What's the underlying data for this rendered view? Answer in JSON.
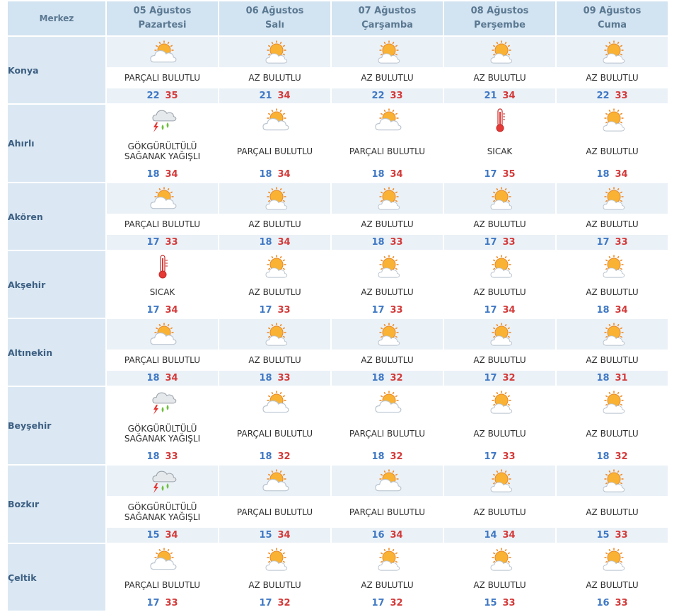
{
  "header": {
    "merkez_label": "Merkez",
    "days": [
      {
        "date": "05 Ağustos",
        "weekday": "Pazartesi"
      },
      {
        "date": "06 Ağustos",
        "weekday": "Salı"
      },
      {
        "date": "07 Ağustos",
        "weekday": "Çarşamba"
      },
      {
        "date": "08 Ağustos",
        "weekday": "Perşembe"
      },
      {
        "date": "09 Ağustos",
        "weekday": "Cuma"
      }
    ]
  },
  "colors": {
    "header_bg": "#d2e3f1",
    "city_bg": "#dbe8f3",
    "min_temp": "#3f78c4",
    "max_temp": "#d43a3a"
  },
  "rows": [
    {
      "city": "Konya",
      "days": [
        {
          "icon": "partly-cloudy-icon",
          "desc": [
            "PARÇALI BULUTLU"
          ],
          "min": "22",
          "max": "35"
        },
        {
          "icon": "mostly-sunny-icon",
          "desc": [
            "AZ BULUTLU"
          ],
          "min": "21",
          "max": "34"
        },
        {
          "icon": "mostly-sunny-icon",
          "desc": [
            "AZ BULUTLU"
          ],
          "min": "22",
          "max": "33"
        },
        {
          "icon": "mostly-sunny-icon",
          "desc": [
            "AZ BULUTLU"
          ],
          "min": "21",
          "max": "34"
        },
        {
          "icon": "mostly-sunny-icon",
          "desc": [
            "AZ BULUTLU"
          ],
          "min": "22",
          "max": "33"
        }
      ]
    },
    {
      "city": "Ahırlı",
      "days": [
        {
          "icon": "thunderstorm-icon",
          "desc": [
            "GÖKGÜRÜLTÜLÜ",
            "SAĞANAK YAĞIŞLI"
          ],
          "min": "18",
          "max": "34"
        },
        {
          "icon": "partly-cloudy-icon",
          "desc": [
            "PARÇALI BULUTLU"
          ],
          "min": "18",
          "max": "34"
        },
        {
          "icon": "partly-cloudy-icon",
          "desc": [
            "PARÇALI BULUTLU"
          ],
          "min": "18",
          "max": "34"
        },
        {
          "icon": "hot-thermometer-icon",
          "desc": [
            "SICAK"
          ],
          "min": "17",
          "max": "35"
        },
        {
          "icon": "mostly-sunny-icon",
          "desc": [
            "AZ BULUTLU"
          ],
          "min": "18",
          "max": "34"
        }
      ]
    },
    {
      "city": "Akören",
      "days": [
        {
          "icon": "partly-cloudy-icon",
          "desc": [
            "PARÇALI BULUTLU"
          ],
          "min": "17",
          "max": "33"
        },
        {
          "icon": "mostly-sunny-icon",
          "desc": [
            "AZ BULUTLU"
          ],
          "min": "18",
          "max": "34"
        },
        {
          "icon": "mostly-sunny-icon",
          "desc": [
            "AZ BULUTLU"
          ],
          "min": "18",
          "max": "33"
        },
        {
          "icon": "mostly-sunny-icon",
          "desc": [
            "AZ BULUTLU"
          ],
          "min": "17",
          "max": "33"
        },
        {
          "icon": "mostly-sunny-icon",
          "desc": [
            "AZ BULUTLU"
          ],
          "min": "17",
          "max": "33"
        }
      ]
    },
    {
      "city": "Akşehir",
      "days": [
        {
          "icon": "hot-thermometer-icon",
          "desc": [
            "SICAK"
          ],
          "min": "17",
          "max": "34"
        },
        {
          "icon": "mostly-sunny-icon",
          "desc": [
            "AZ BULUTLU"
          ],
          "min": "17",
          "max": "33"
        },
        {
          "icon": "mostly-sunny-icon",
          "desc": [
            "AZ BULUTLU"
          ],
          "min": "17",
          "max": "33"
        },
        {
          "icon": "mostly-sunny-icon",
          "desc": [
            "AZ BULUTLU"
          ],
          "min": "17",
          "max": "34"
        },
        {
          "icon": "mostly-sunny-icon",
          "desc": [
            "AZ BULUTLU"
          ],
          "min": "18",
          "max": "34"
        }
      ]
    },
    {
      "city": "Altınekin",
      "days": [
        {
          "icon": "partly-cloudy-icon",
          "desc": [
            "PARÇALI BULUTLU"
          ],
          "min": "18",
          "max": "34"
        },
        {
          "icon": "mostly-sunny-icon",
          "desc": [
            "AZ BULUTLU"
          ],
          "min": "18",
          "max": "33"
        },
        {
          "icon": "mostly-sunny-icon",
          "desc": [
            "AZ BULUTLU"
          ],
          "min": "18",
          "max": "32"
        },
        {
          "icon": "mostly-sunny-icon",
          "desc": [
            "AZ BULUTLU"
          ],
          "min": "17",
          "max": "32"
        },
        {
          "icon": "mostly-sunny-icon",
          "desc": [
            "AZ BULUTLU"
          ],
          "min": "18",
          "max": "31"
        }
      ]
    },
    {
      "city": "Beyşehir",
      "days": [
        {
          "icon": "thunderstorm-icon",
          "desc": [
            "GÖKGÜRÜLTÜLÜ",
            "SAĞANAK YAĞIŞLI"
          ],
          "min": "18",
          "max": "33"
        },
        {
          "icon": "partly-cloudy-icon",
          "desc": [
            "PARÇALI BULUTLU"
          ],
          "min": "18",
          "max": "32"
        },
        {
          "icon": "partly-cloudy-icon",
          "desc": [
            "PARÇALI BULUTLU"
          ],
          "min": "18",
          "max": "32"
        },
        {
          "icon": "mostly-sunny-icon",
          "desc": [
            "AZ BULUTLU"
          ],
          "min": "17",
          "max": "33"
        },
        {
          "icon": "mostly-sunny-icon",
          "desc": [
            "AZ BULUTLU"
          ],
          "min": "18",
          "max": "32"
        }
      ]
    },
    {
      "city": "Bozkır",
      "days": [
        {
          "icon": "thunderstorm-icon",
          "desc": [
            "GÖKGÜRÜLTÜLÜ",
            "SAĞANAK YAĞIŞLI"
          ],
          "min": "15",
          "max": "34"
        },
        {
          "icon": "partly-cloudy-icon",
          "desc": [
            "PARÇALI BULUTLU"
          ],
          "min": "15",
          "max": "34"
        },
        {
          "icon": "partly-cloudy-icon",
          "desc": [
            "PARÇALI BULUTLU"
          ],
          "min": "16",
          "max": "34"
        },
        {
          "icon": "mostly-sunny-icon",
          "desc": [
            "AZ BULUTLU"
          ],
          "min": "14",
          "max": "34"
        },
        {
          "icon": "mostly-sunny-icon",
          "desc": [
            "AZ BULUTLU"
          ],
          "min": "15",
          "max": "33"
        }
      ]
    },
    {
      "city": "Çeltik",
      "days": [
        {
          "icon": "partly-cloudy-icon",
          "desc": [
            "PARÇALI BULUTLU"
          ],
          "min": "17",
          "max": "33"
        },
        {
          "icon": "mostly-sunny-icon",
          "desc": [
            "AZ BULUTLU"
          ],
          "min": "17",
          "max": "32"
        },
        {
          "icon": "mostly-sunny-icon",
          "desc": [
            "AZ BULUTLU"
          ],
          "min": "17",
          "max": "32"
        },
        {
          "icon": "mostly-sunny-icon",
          "desc": [
            "AZ BULUTLU"
          ],
          "min": "15",
          "max": "33"
        },
        {
          "icon": "mostly-sunny-icon",
          "desc": [
            "AZ BULUTLU"
          ],
          "min": "16",
          "max": "33"
        }
      ]
    }
  ]
}
